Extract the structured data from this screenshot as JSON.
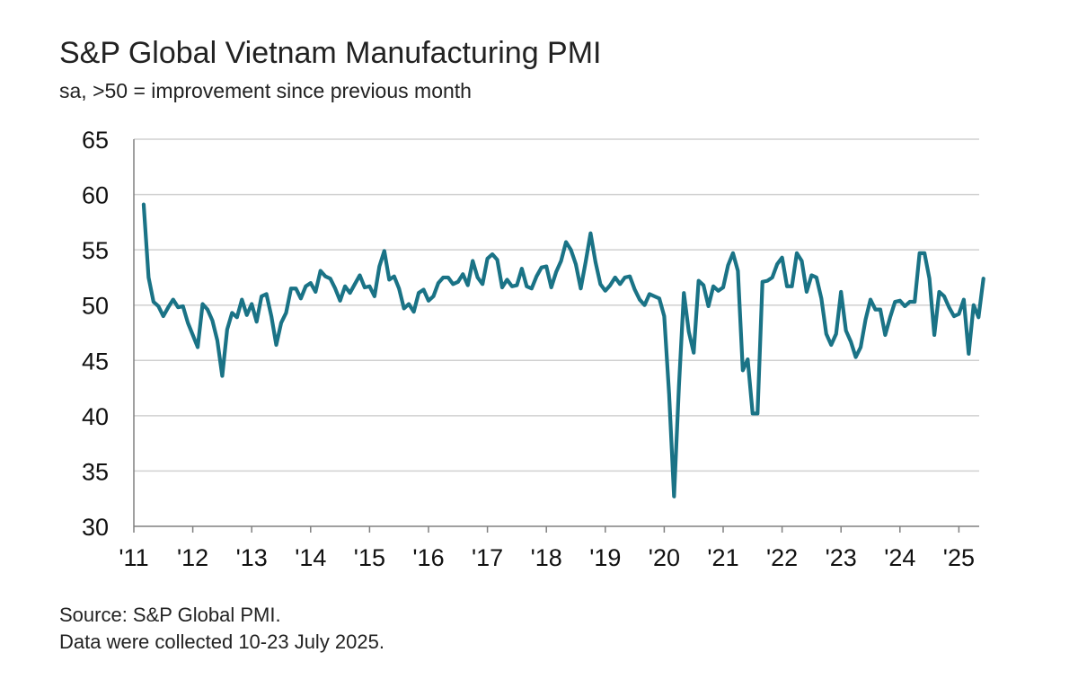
{
  "title": "S&P Global Vietnam Manufacturing PMI",
  "subtitle": "sa, >50 = improvement since previous month",
  "source_lines": [
    "Source: S&P Global PMI.",
    "Data were collected 10-23 July 2025."
  ],
  "colors": {
    "line": "#1a7386",
    "grid": "#d0d0d0",
    "axis": "#808080"
  },
  "chart_data": {
    "type": "line",
    "title": "S&P Global Vietnam Manufacturing PMI",
    "subtitle": "sa, >50 = improvement since previous month",
    "xlabel": "",
    "ylabel": "",
    "ylim": [
      30,
      65
    ],
    "yticks": [
      30,
      35,
      40,
      45,
      50,
      55,
      60,
      65
    ],
    "xticks": [
      "'11",
      "'12",
      "'13",
      "'14",
      "'15",
      "'16",
      "'17",
      "'18",
      "'19",
      "'20",
      "'21",
      "'22",
      "'23",
      "'24",
      "'25"
    ],
    "grid": "horizontal",
    "x_start": "2011-03",
    "x_end": "2025-07",
    "series": [
      {
        "values": [
          59.1,
          52.5,
          50.3,
          49.9,
          49.0,
          49.8,
          50.5,
          49.8,
          49.9,
          48.4,
          47.3,
          46.2,
          50.1,
          49.6,
          48.6,
          46.8,
          43.6,
          47.8,
          49.3,
          48.9,
          50.5,
          49.1,
          50.1,
          48.5,
          50.8,
          51.0,
          49.0,
          46.4,
          48.4,
          49.3,
          51.5,
          51.5,
          50.6,
          51.7,
          52.0,
          51.2,
          53.1,
          52.6,
          52.4,
          51.5,
          50.4,
          51.7,
          51.1,
          51.9,
          52.7,
          51.6,
          51.7,
          50.8,
          53.5,
          54.9,
          52.3,
          52.6,
          51.5,
          49.7,
          50.1,
          49.4,
          51.1,
          51.4,
          50.4,
          50.8,
          52.0,
          52.5,
          52.5,
          51.9,
          52.1,
          52.8,
          51.8,
          54.0,
          52.5,
          51.9,
          54.2,
          54.6,
          54.1,
          51.6,
          52.3,
          51.7,
          51.8,
          53.3,
          51.7,
          51.5,
          52.6,
          53.4,
          53.5,
          51.6,
          53.0,
          54.0,
          55.7,
          55.0,
          53.7,
          51.5,
          53.9,
          56.5,
          53.9,
          51.9,
          51.3,
          51.8,
          52.5,
          51.9,
          52.5,
          52.6,
          51.4,
          50.5,
          50.0,
          51.0,
          50.8,
          50.6,
          49.0,
          41.9,
          32.7,
          42.7,
          51.1,
          47.6,
          45.7,
          52.2,
          51.8,
          49.9,
          51.7,
          51.3,
          51.6,
          53.6,
          54.7,
          53.1,
          44.1,
          45.1,
          40.2,
          40.2,
          52.1,
          52.2,
          52.5,
          53.7,
          54.3,
          51.7,
          51.7,
          54.7,
          54.0,
          51.2,
          52.7,
          52.5,
          50.6,
          47.4,
          46.4,
          47.4,
          51.2,
          47.7,
          46.7,
          45.3,
          46.2,
          48.7,
          50.5,
          49.6,
          49.6,
          47.3,
          48.9,
          50.3,
          50.4,
          49.9,
          50.3,
          50.3,
          54.7,
          54.7,
          52.4,
          47.3,
          51.2,
          50.8,
          49.8,
          49.0,
          49.2,
          50.5,
          45.6,
          50.0,
          48.9,
          52.4
        ]
      }
    ]
  }
}
